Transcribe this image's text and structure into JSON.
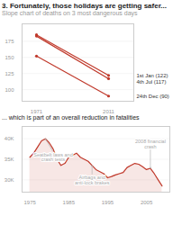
{
  "chart_data": [
    {
      "type": "line",
      "title": "3. Fortunately, those holidays are getting safer...",
      "subtitle": "Slope chart of deaths on 3 most dangerous days",
      "x": [
        1971,
        2011
      ],
      "series": [
        {
          "name": "1st Jan (122)",
          "color": "#c0392b",
          "values": [
            185,
            122
          ]
        },
        {
          "name": "4th Jul (117)",
          "color": "#c0392b",
          "values": [
            183,
            117
          ]
        },
        {
          "name": "24th Dec (90)",
          "color": "#c0392b",
          "values": [
            152,
            90
          ]
        }
      ],
      "marker": "circle",
      "xlim": [
        1963,
        2025
      ],
      "xticks": [
        1971,
        2011
      ],
      "ylim": [
        82,
        202
      ],
      "yticks": [
        100,
        125,
        150,
        175
      ],
      "grid": true
    },
    {
      "type": "area",
      "title": "... which is part of an overall reduction in fatalities",
      "x": [
        1975,
        1976,
        1977,
        1978,
        1979,
        1980,
        1981,
        1982,
        1983,
        1984,
        1985,
        1986,
        1987,
        1988,
        1989,
        1990,
        1991,
        1992,
        1993,
        1994,
        1995,
        1996,
        1997,
        1998,
        1999,
        2000,
        2001,
        2002,
        2003,
        2004,
        2005,
        2006,
        2007,
        2008,
        2009
      ],
      "values": [
        35500,
        36500,
        38000,
        39500,
        40000,
        39000,
        37500,
        35000,
        33500,
        34000,
        35500,
        36000,
        36500,
        35500,
        35000,
        34500,
        33500,
        32500,
        32000,
        31500,
        30500,
        30800,
        31200,
        31500,
        31800,
        33000,
        33500,
        34000,
        33800,
        33200,
        32500,
        32800,
        31500,
        30000,
        28500
      ],
      "color": "#c0392b",
      "xlim": [
        1973,
        2011
      ],
      "xticks": [
        1975,
        1985,
        1995,
        2005
      ],
      "ylim": [
        27000,
        43000
      ],
      "yticks": [
        {
          "value": 30000,
          "label": "30K"
        },
        {
          "value": 35000,
          "label": "35K"
        },
        {
          "value": 40000,
          "label": "40K"
        }
      ],
      "grid": true,
      "annotations": [
        {
          "text": "Seatbelt laws and\ncrash tests",
          "x": 1979,
          "y": 40000,
          "text_x": 1981,
          "text_y": 36800
        },
        {
          "text": "Airbags and\nanti-lock brakes",
          "x": 1991,
          "y": 33500,
          "text_x": 1991,
          "text_y": 31200
        },
        {
          "text": "2008 financial\ncrash",
          "x": 2006,
          "y": 32800,
          "text_x": 2006,
          "text_y": 37500
        }
      ]
    }
  ]
}
